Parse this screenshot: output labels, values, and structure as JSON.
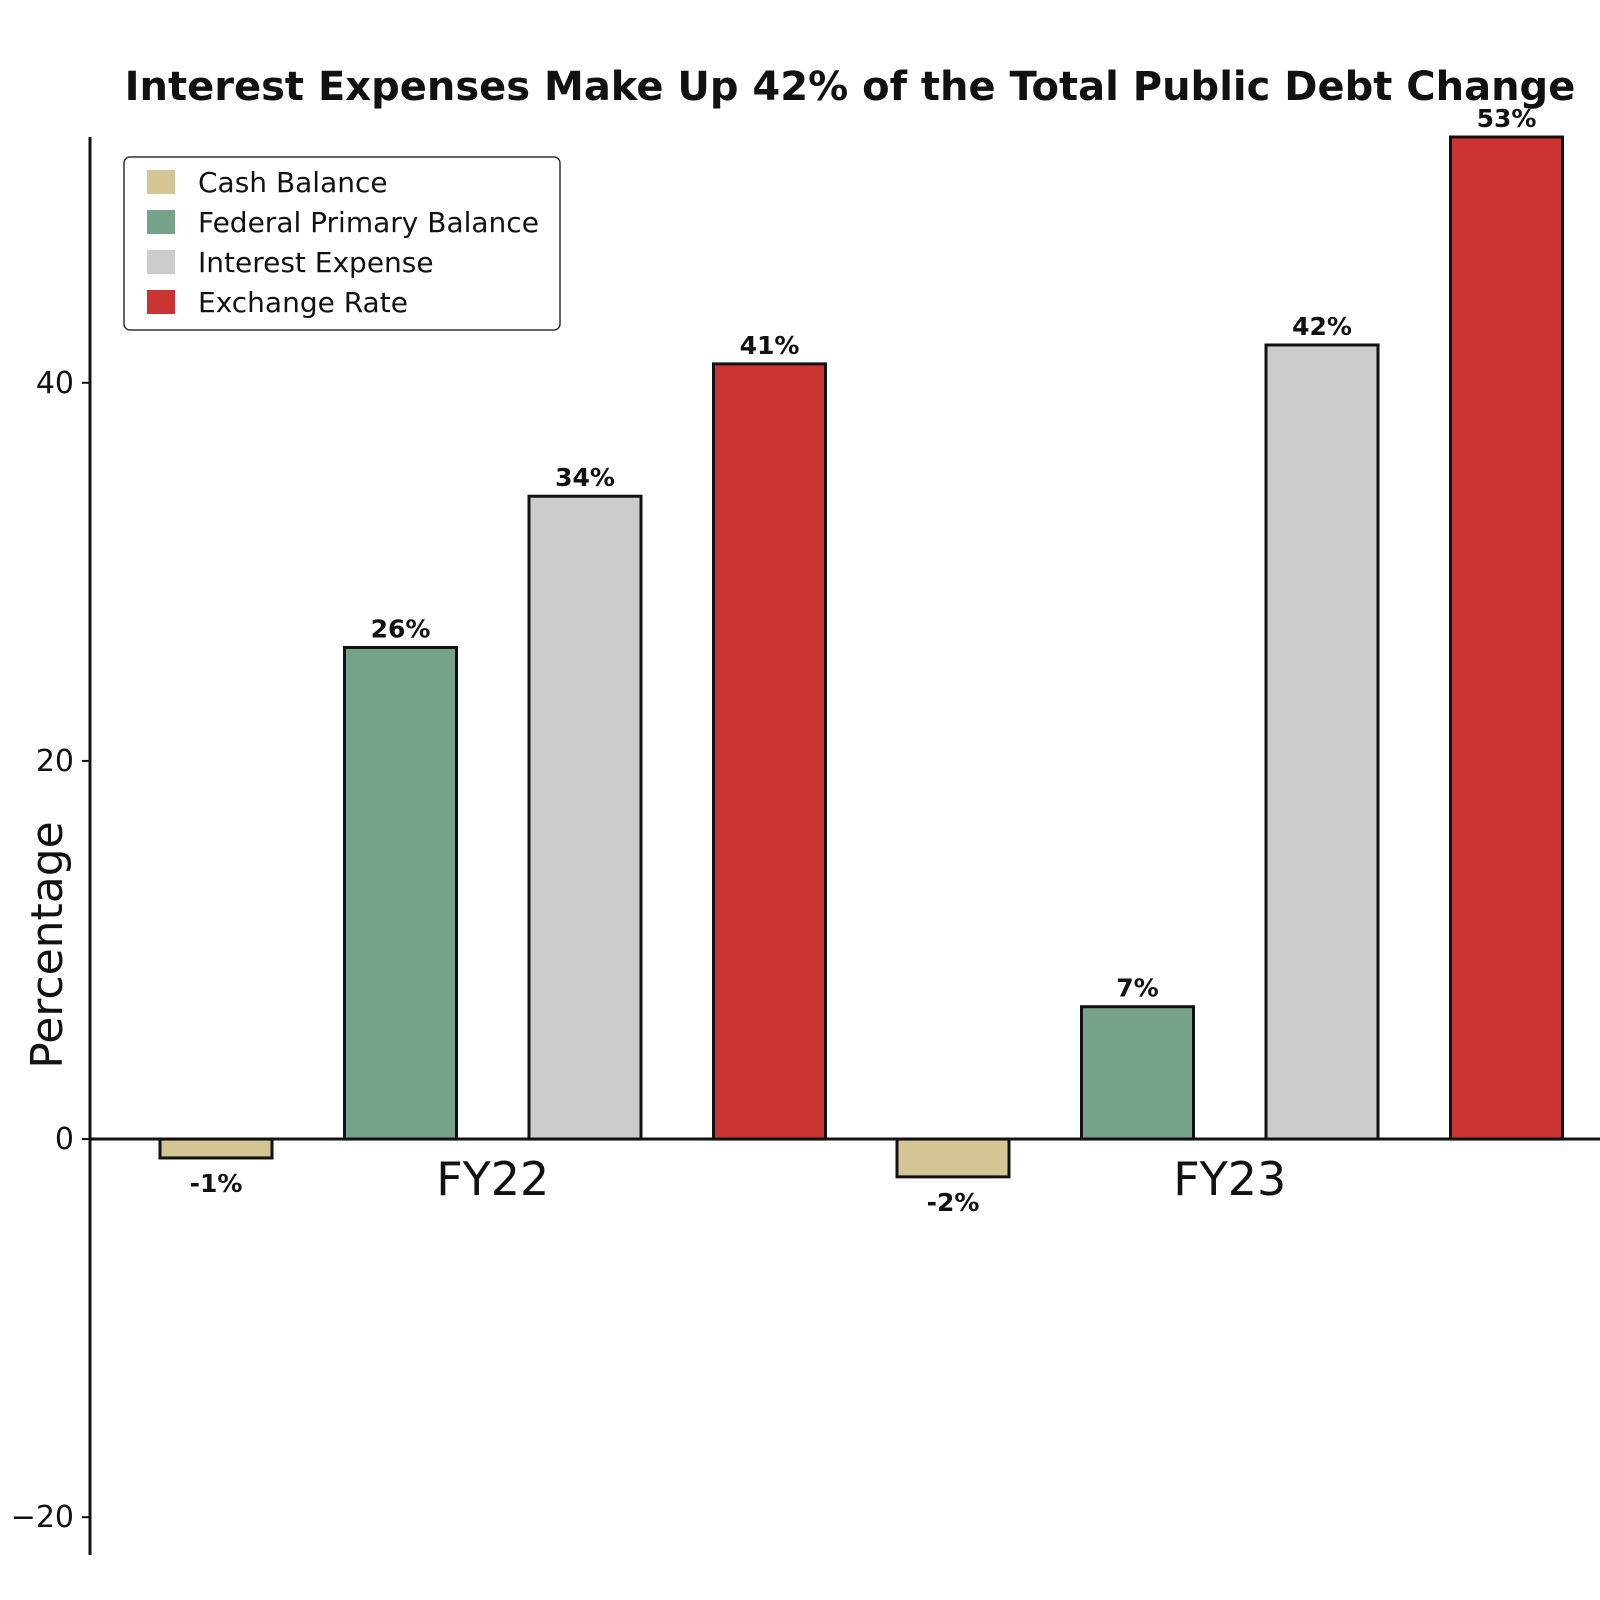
{
  "chart_data": {
    "type": "bar",
    "title": "Interest Expenses Make Up 42% of the Total Public Debt Change",
    "ylabel": "Percentage",
    "xlabel": "",
    "categories": [
      "FY22",
      "FY23"
    ],
    "ylim": [
      -22,
      53
    ],
    "yticks": [
      -20,
      0,
      20,
      40
    ],
    "grid": false,
    "legend_position": "top-left",
    "series": [
      {
        "name": "Cash Balance",
        "color": "#d4c595",
        "values": [
          -1,
          -2
        ],
        "labels": [
          "-1%",
          "-2%"
        ]
      },
      {
        "name": "Federal Primary Balance",
        "color": "#76a28a",
        "values": [
          26,
          7
        ],
        "labels": [
          "26%",
          "7%"
        ]
      },
      {
        "name": "Interest Expense",
        "color": "#cccccc",
        "values": [
          34,
          42
        ],
        "labels": [
          "34%",
          "42%"
        ]
      },
      {
        "name": "Exchange Rate",
        "color": "#cc3333",
        "values": [
          41,
          53
        ],
        "labels": [
          "41%",
          "53%"
        ]
      }
    ]
  }
}
